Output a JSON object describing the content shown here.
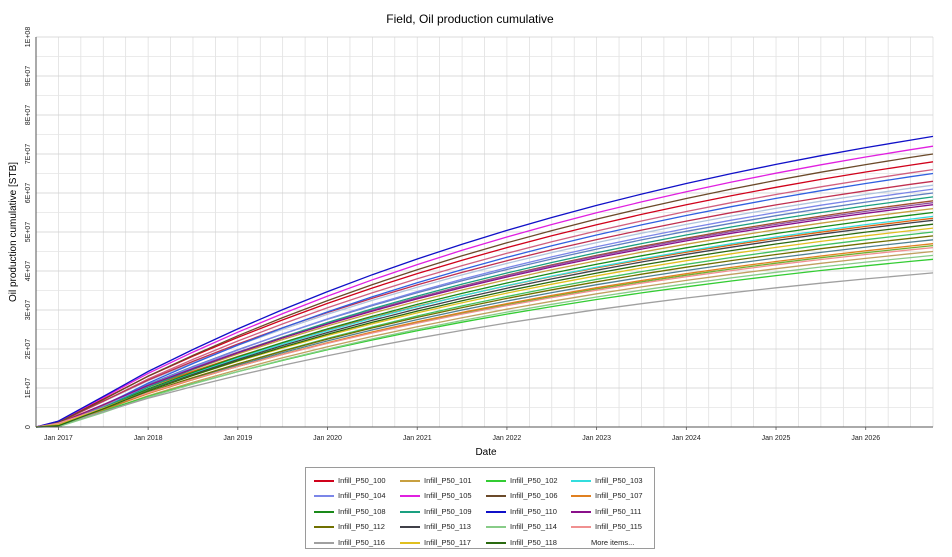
{
  "chart_data": {
    "type": "line",
    "title": "Field, Oil production cumulative",
    "xlabel": "Date",
    "ylabel": "Oil production cumulative [STB]",
    "ylim": [
      0,
      100000000
    ],
    "y_ticks": [
      "0",
      "1E+07",
      "2E+07",
      "3E+07",
      "4E+07",
      "5E+07",
      "6E+07",
      "7E+07",
      "8E+07",
      "9E+07",
      "1E+08"
    ],
    "x_ticks": [
      "Jan 2017",
      "Jan 2018",
      "Jan 2019",
      "Jan 2020",
      "Jan 2021",
      "Jan 2022",
      "Jan 2023",
      "Jan 2024",
      "Jan 2025",
      "Jan 2026"
    ],
    "xlim": [
      "2016-10",
      "2026-10"
    ],
    "grid": true,
    "x_dates": [
      "2016-10",
      "2017-01",
      "2017-07",
      "2018-01",
      "2018-07",
      "2019-01",
      "2019-07",
      "2020-01",
      "2020-07",
      "2021-01",
      "2021-07",
      "2022-01",
      "2022-07",
      "2023-01",
      "2023-07",
      "2024-01",
      "2024-07",
      "2025-01",
      "2025-07",
      "2026-01",
      "2026-07",
      "2026-10"
    ],
    "series": [
      {
        "name": "Infill_P50_100",
        "color": "#d0021b",
        "end_value": 68000000
      },
      {
        "name": "Infill_P50_101",
        "color": "#c8a040",
        "end_value": 56000000
      },
      {
        "name": "Infill_P50_102",
        "color": "#33cc33",
        "end_value": 43000000
      },
      {
        "name": "Infill_P50_103",
        "color": "#33dddd",
        "end_value": 54000000
      },
      {
        "name": "Infill_P50_104",
        "color": "#7b86e8",
        "end_value": 61000000
      },
      {
        "name": "Infill_P50_105",
        "color": "#e020e0",
        "end_value": 72000000
      },
      {
        "name": "Infill_P50_106",
        "color": "#6b4a2a",
        "end_value": 70000000
      },
      {
        "name": "Infill_P50_107",
        "color": "#e08020",
        "end_value": 47000000
      },
      {
        "name": "Infill_P50_108",
        "color": "#1a8a1a",
        "end_value": 55000000
      },
      {
        "name": "Infill_P50_109",
        "color": "#1aa080",
        "end_value": 59000000
      },
      {
        "name": "Infill_P50_110",
        "color": "#1010c8",
        "end_value": 74500000
      },
      {
        "name": "Infill_P50_111",
        "color": "#8a108a",
        "end_value": 57000000
      },
      {
        "name": "Infill_P50_112",
        "color": "#707000",
        "end_value": 49000000
      },
      {
        "name": "Infill_P50_113",
        "color": "#404048",
        "end_value": 53000000
      },
      {
        "name": "Infill_P50_114",
        "color": "#88cc88",
        "end_value": 44000000
      },
      {
        "name": "Infill_P50_115",
        "color": "#f09090",
        "end_value": 46000000
      },
      {
        "name": "Infill_P50_116",
        "color": "#a0a0a0",
        "end_value": 39500000
      },
      {
        "name": "Infill_P50_117",
        "color": "#e0c020",
        "end_value": 51000000
      },
      {
        "name": "Infill_P50_118",
        "color": "#2a6a10",
        "end_value": 52000000
      }
    ],
    "extra_series_colors": [
      "#b0c4de",
      "#d06080",
      "#6080c0",
      "#a05030",
      "#40c060",
      "#c03050",
      "#9050a0",
      "#508090",
      "#c0a060",
      "#3060e0",
      "#e06010",
      "#70b030"
    ],
    "extra_series_end_values": [
      62000000,
      66000000,
      60000000,
      58000000,
      50000000,
      63000000,
      57500000,
      48000000,
      45000000,
      65000000,
      53500000,
      46500000
    ]
  },
  "legend": {
    "more_label": "More items..."
  }
}
